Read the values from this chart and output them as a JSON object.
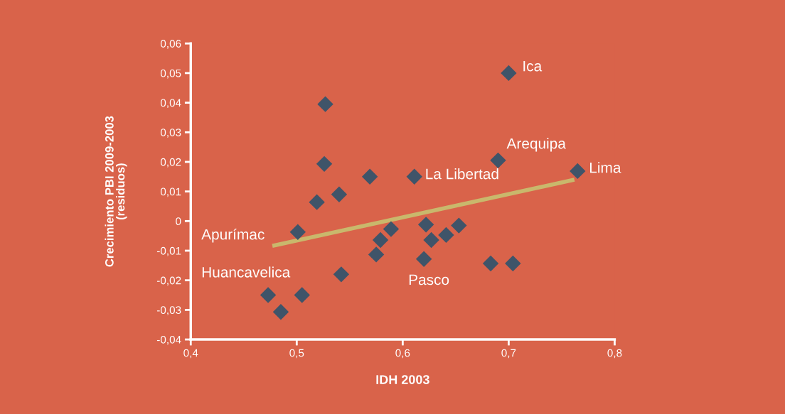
{
  "chart_data": {
    "type": "scatter",
    "xlabel": "IDH 2003",
    "ylabel": "Crecimiento PBI 2009-2003\n(residuos)",
    "grid": false,
    "legend": false,
    "xlim": [
      0.4,
      0.8
    ],
    "ylim": [
      -0.04,
      0.06
    ],
    "xticks": [
      {
        "value": 0.4,
        "label": "0,4"
      },
      {
        "value": 0.5,
        "label": "0,5"
      },
      {
        "value": 0.6,
        "label": "0,6"
      },
      {
        "value": 0.7,
        "label": "0,7"
      },
      {
        "value": 0.8,
        "label": "0,8"
      }
    ],
    "yticks": [
      {
        "value": -0.04,
        "label": "-0,04"
      },
      {
        "value": -0.03,
        "label": "-0,03"
      },
      {
        "value": -0.02,
        "label": "-0,02"
      },
      {
        "value": -0.01,
        "label": "-0,01"
      },
      0,
      {
        "value": 0.01,
        "label": "0,01"
      },
      {
        "value": 0.02,
        "label": "0,02"
      },
      {
        "value": 0.03,
        "label": "0,03"
      },
      {
        "value": 0.04,
        "label": "0,04"
      },
      {
        "value": 0.05,
        "label": "0,05"
      },
      {
        "value": 0.06,
        "label": "0,06"
      }
    ],
    "series": [
      {
        "marker": "diamond",
        "color": "#3f5469",
        "x": [
          0.527,
          0.526,
          0.519,
          0.54,
          0.569,
          0.611,
          0.501,
          0.589,
          0.579,
          0.575,
          0.542,
          0.473,
          0.485,
          0.505,
          0.622,
          0.627,
          0.641,
          0.653,
          0.62,
          0.683,
          0.704,
          0.7,
          0.69,
          0.765
        ],
        "values": [
          0.0395,
          0.0193,
          0.0064,
          0.009,
          0.015,
          0.015,
          -0.0037,
          -0.0027,
          -0.0064,
          -0.0113,
          -0.018,
          -0.025,
          -0.0307,
          -0.025,
          -0.0012,
          -0.0064,
          -0.0047,
          -0.0015,
          -0.0128,
          -0.0143,
          -0.0143,
          0.05,
          0.0205,
          0.0169
        ]
      },
      {
        "type": "line",
        "color": "#c9b86c",
        "x": [
          0.477,
          0.762
        ],
        "values": [
          -0.0084,
          0.014
        ]
      }
    ],
    "annotations": [
      {
        "text": "Ica",
        "x": 0.7,
        "y": 0.05
      },
      {
        "text": "Arequipa",
        "x": 0.69,
        "y": 0.0205
      },
      {
        "text": "Lima",
        "x": 0.765,
        "y": 0.0169
      },
      {
        "text": "La Libertad",
        "x": 0.611,
        "y": 0.015
      },
      "Apurímac",
      "Huancavelica",
      {
        "text": "Pasco",
        "x": 0.62,
        "y": -0.0128
      }
    ]
  }
}
